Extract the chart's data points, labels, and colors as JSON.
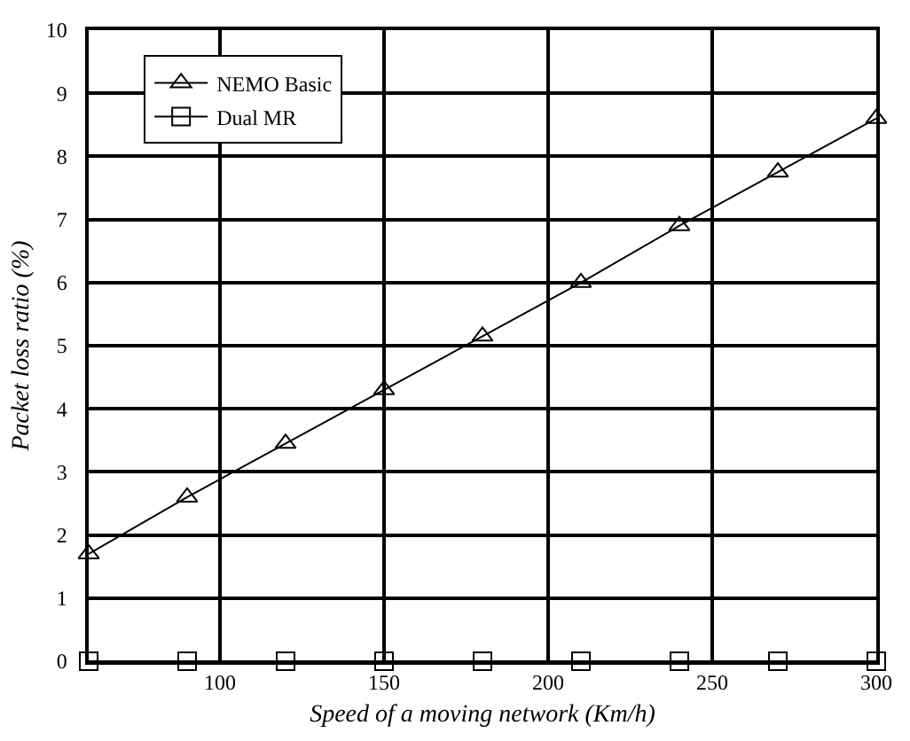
{
  "chart_data": {
    "type": "line",
    "xlabel": "Speed of a moving network (Km/h)",
    "ylabel": "Packet loss ratio (%)",
    "x": [
      60,
      90,
      120,
      150,
      180,
      210,
      240,
      270,
      300
    ],
    "series": [
      {
        "name": "NEMO Basic",
        "color": "#000000",
        "marker": "triangle",
        "values": [
          1.7,
          2.6,
          3.45,
          4.3,
          5.15,
          6.0,
          6.9,
          7.75,
          8.6
        ]
      },
      {
        "name": "Dual MR",
        "color": "#000000",
        "marker": "square",
        "values": [
          0,
          0,
          0,
          0,
          0,
          0,
          0,
          0,
          0
        ]
      }
    ],
    "xlim": [
      60,
      300
    ],
    "xticks": [
      100,
      150,
      200,
      250,
      300
    ],
    "ylim": [
      0,
      10
    ],
    "yticks": [
      0,
      1,
      2,
      3,
      4,
      5,
      6,
      7,
      8,
      9,
      10
    ],
    "grid": true,
    "legend": "top left",
    "line_style": "solid"
  }
}
